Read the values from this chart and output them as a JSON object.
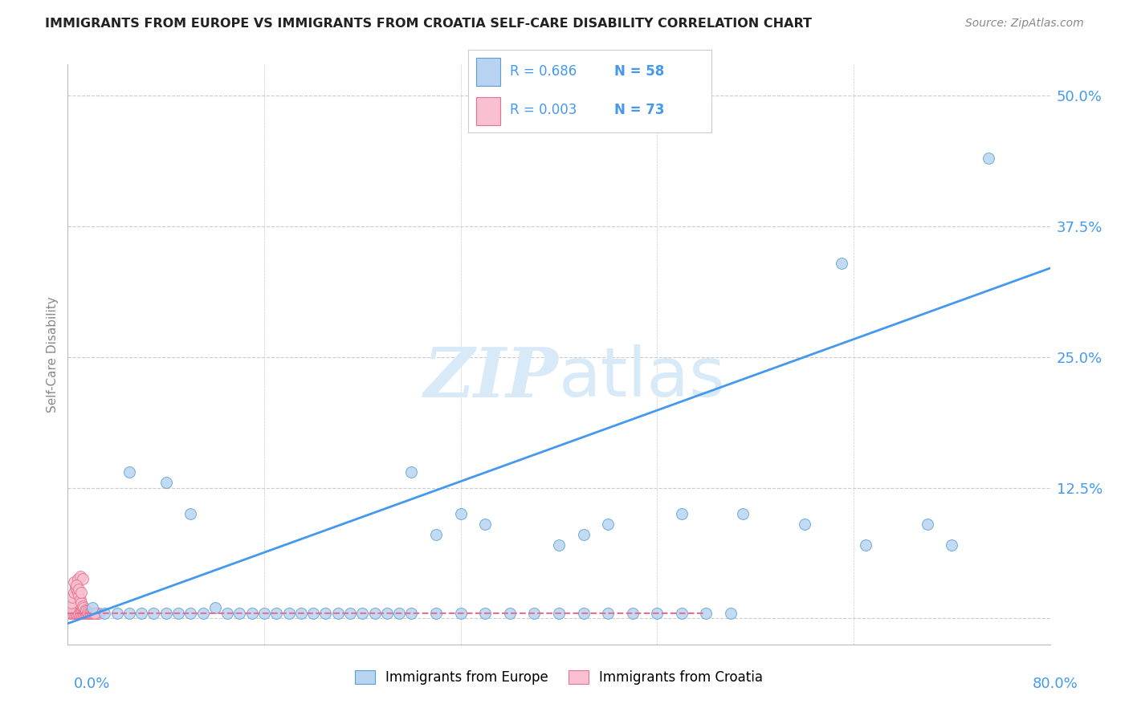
{
  "title": "IMMIGRANTS FROM EUROPE VS IMMIGRANTS FROM CROATIA SELF-CARE DISABILITY CORRELATION CHART",
  "source": "Source: ZipAtlas.com",
  "ylabel": "Self-Care Disability",
  "legend_label1": "Immigrants from Europe",
  "legend_label2": "Immigrants from Croatia",
  "R1": "0.686",
  "N1": "58",
  "R2": "0.003",
  "N2": "73",
  "xlim": [
    0.0,
    0.8
  ],
  "ylim": [
    -0.025,
    0.53
  ],
  "ytick_vals": [
    0.0,
    0.125,
    0.25,
    0.375,
    0.5
  ],
  "ytick_labels": [
    "",
    "12.5%",
    "25.0%",
    "37.5%",
    "50.0%"
  ],
  "color_europe_fill": "#b8d4f0",
  "color_europe_edge": "#5a9fd4",
  "color_croatia_fill": "#f8c0d0",
  "color_croatia_edge": "#e87090",
  "color_europe_line": "#4499ee",
  "color_croatia_line": "#e87090",
  "watermark_color": "#d8eaf8",
  "europe_x": [
    0.02,
    0.03,
    0.04,
    0.05,
    0.06,
    0.07,
    0.08,
    0.09,
    0.1,
    0.11,
    0.12,
    0.13,
    0.14,
    0.15,
    0.16,
    0.17,
    0.18,
    0.19,
    0.2,
    0.21,
    0.22,
    0.23,
    0.24,
    0.25,
    0.26,
    0.27,
    0.28,
    0.3,
    0.32,
    0.34,
    0.36,
    0.38,
    0.4,
    0.42,
    0.44,
    0.46,
    0.48,
    0.5,
    0.52,
    0.54,
    0.28,
    0.3,
    0.32,
    0.34,
    0.4,
    0.42,
    0.44,
    0.5,
    0.55,
    0.6,
    0.65,
    0.7,
    0.72,
    0.75,
    0.63,
    0.05,
    0.08,
    0.1
  ],
  "europe_y": [
    0.01,
    0.005,
    0.005,
    0.005,
    0.005,
    0.005,
    0.005,
    0.005,
    0.005,
    0.005,
    0.01,
    0.005,
    0.005,
    0.005,
    0.005,
    0.005,
    0.005,
    0.005,
    0.005,
    0.005,
    0.005,
    0.005,
    0.005,
    0.005,
    0.005,
    0.005,
    0.005,
    0.005,
    0.005,
    0.005,
    0.005,
    0.005,
    0.005,
    0.005,
    0.005,
    0.005,
    0.005,
    0.005,
    0.005,
    0.005,
    0.14,
    0.08,
    0.1,
    0.09,
    0.07,
    0.08,
    0.09,
    0.1,
    0.1,
    0.09,
    0.07,
    0.09,
    0.07,
    0.44,
    0.34,
    0.14,
    0.13,
    0.1
  ],
  "croatia_x": [
    0.002,
    0.003,
    0.004,
    0.005,
    0.006,
    0.007,
    0.008,
    0.009,
    0.01,
    0.011,
    0.012,
    0.013,
    0.014,
    0.015,
    0.016,
    0.017,
    0.018,
    0.019,
    0.02,
    0.021,
    0.022,
    0.023,
    0.024,
    0.025,
    0.002,
    0.003,
    0.004,
    0.005,
    0.006,
    0.007,
    0.008,
    0.009,
    0.01,
    0.011,
    0.012,
    0.013,
    0.014,
    0.015,
    0.016,
    0.017,
    0.018,
    0.019,
    0.02,
    0.021,
    0.022,
    0.002,
    0.003,
    0.004,
    0.005,
    0.006,
    0.007,
    0.008,
    0.009,
    0.01,
    0.011,
    0.012,
    0.013,
    0.014,
    0.015,
    0.016,
    0.017,
    0.018,
    0.019,
    0.02,
    0.021,
    0.022,
    0.005,
    0.008,
    0.01,
    0.012,
    0.007,
    0.009,
    0.011
  ],
  "croatia_y": [
    0.005,
    0.005,
    0.005,
    0.005,
    0.005,
    0.005,
    0.005,
    0.005,
    0.005,
    0.005,
    0.005,
    0.005,
    0.005,
    0.005,
    0.005,
    0.005,
    0.005,
    0.005,
    0.005,
    0.005,
    0.005,
    0.005,
    0.005,
    0.005,
    0.005,
    0.005,
    0.005,
    0.005,
    0.005,
    0.005,
    0.005,
    0.005,
    0.005,
    0.005,
    0.005,
    0.005,
    0.005,
    0.005,
    0.005,
    0.005,
    0.005,
    0.005,
    0.005,
    0.005,
    0.005,
    0.01,
    0.015,
    0.02,
    0.025,
    0.03,
    0.028,
    0.025,
    0.022,
    0.018,
    0.015,
    0.012,
    0.01,
    0.008,
    0.007,
    0.006,
    0.005,
    0.005,
    0.005,
    0.005,
    0.005,
    0.005,
    0.035,
    0.038,
    0.04,
    0.038,
    0.032,
    0.028,
    0.025
  ],
  "europe_line_x": [
    0.0,
    0.8
  ],
  "europe_line_y": [
    -0.005,
    0.335
  ],
  "croatia_line_x": [
    0.0,
    0.52
  ],
  "croatia_line_y": [
    0.005,
    0.005
  ]
}
